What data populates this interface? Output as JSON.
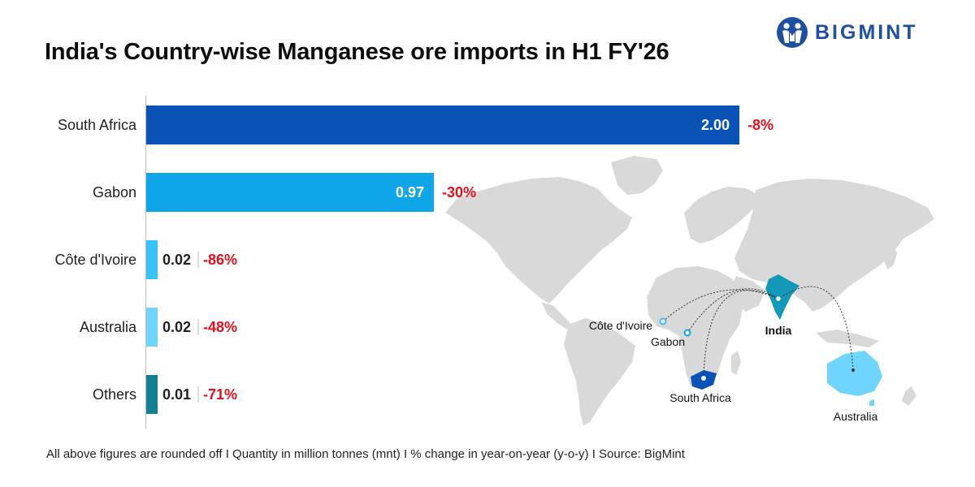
{
  "header": {
    "title": "India's Country-wise Manganese ore imports in H1 FY'26",
    "brand": "BIGMINT"
  },
  "chart_data": {
    "type": "bar",
    "orientation": "horizontal",
    "categories": [
      "South Africa",
      "Gabon",
      "Côte d'Ivoire",
      "Australia",
      "Others"
    ],
    "values": [
      2.0,
      0.97,
      0.02,
      0.02,
      0.01
    ],
    "value_labels": [
      "2.00",
      "0.97",
      "0.02",
      "0.02",
      "0.01"
    ],
    "pct_change": [
      "-8%",
      "-30%",
      "-86%",
      "-48%",
      "-71%"
    ],
    "colors": [
      "#0a52b5",
      "#0ea6e6",
      "#37c3f8",
      "#6fd5fc",
      "#137f92"
    ],
    "pct_color": "#e30f1b",
    "title": "India's Country-wise Manganese ore imports in H1 FY'26",
    "xlabel": "",
    "ylabel": ""
  },
  "map": {
    "labels": {
      "india": "India",
      "cote_divoire": "Côte d'Ivoire",
      "gabon": "Gabon",
      "south_africa": "South Africa",
      "australia": "Australia"
    },
    "colors": {
      "land": "#d9d9d9",
      "india": "#1398b8",
      "south_africa": "#0a52b5",
      "australia": "#6fd5fc",
      "route": "#333333"
    }
  },
  "footer": {
    "note": "All above figures are rounded off  I  Quantity in million tonnes (mnt)  I  % change in year-on-year (y-o-y)  I  Source: BigMint"
  }
}
